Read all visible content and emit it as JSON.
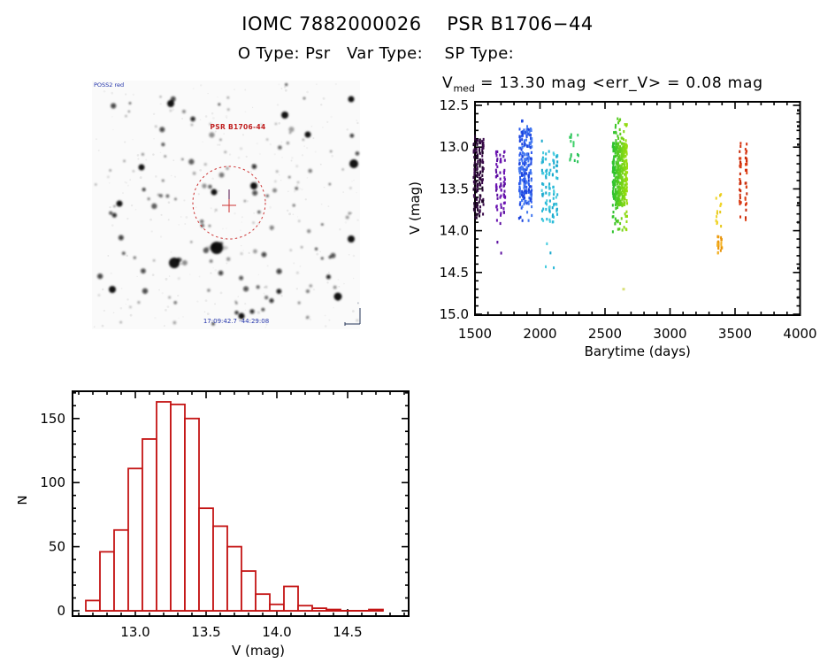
{
  "header": {
    "title": "IOMC 7882000026    PSR B1706−44",
    "subtitle": "O Type: Psr   Var Type:    SP Type:"
  },
  "finding_chart": {
    "survey_label": "POSS2 red",
    "target_label": "PSR B1706-44",
    "coords_label": "17:09:42.7  -44:29:08",
    "circle_color": "#cc3333",
    "label_color": "#c02020",
    "annotation_color": "#2233aa",
    "compass_color": "#223355"
  },
  "lightcurve_title": {
    "prefix": "V",
    "sub": "med",
    "rest": " = 13.30 mag <err_V> = 0.08 mag"
  },
  "chart_data": [
    {
      "type": "scatter",
      "title": "V_med = 13.30 mag <err_V> = 0.08 mag",
      "xlabel": "Barytime (days)",
      "ylabel": "V (mag)",
      "xlim": [
        1500,
        4000
      ],
      "ylim": [
        12.5,
        15.0
      ],
      "y_inverted_magnitude_axis": true,
      "grid": false,
      "x_ticks": [
        1500,
        2000,
        2500,
        3000,
        3500,
        4000
      ],
      "x_minor_step": 100,
      "y_ticks": [
        12.5,
        13.0,
        13.5,
        14.0,
        14.5,
        15.0
      ],
      "y_minor_step": 0.1,
      "clusters": [
        {
          "name": "epoch-1",
          "t_min": 1495,
          "t_max": 1560,
          "cols": 4,
          "n": 150,
          "v_core": [
            12.88,
            13.85
          ],
          "v_full": [
            12.8,
            14.0
          ],
          "tail": 0.12,
          "colors": [
            "#2b0736",
            "#1d0527",
            "#3a0a4a"
          ]
        },
        {
          "name": "epoch-2",
          "t_min": 1668,
          "t_max": 1726,
          "cols": 3,
          "n": 72,
          "v_core": [
            13.05,
            13.8
          ],
          "v_full": [
            12.97,
            14.3
          ],
          "tail": 0.3,
          "colors": [
            "#6b13b2",
            "#5c0fa0"
          ]
        },
        {
          "name": "epoch-3",
          "t_min": 1845,
          "t_max": 1932,
          "cols": 6,
          "n": 240,
          "v_core": [
            12.78,
            13.72
          ],
          "v_full": [
            12.64,
            13.97
          ],
          "tail": 0.12,
          "colors": [
            "#1c43dd",
            "#2b5bee",
            "#4479f0"
          ]
        },
        {
          "name": "epoch-4",
          "t_min": 2020,
          "t_max": 2130,
          "cols": 5,
          "n": 100,
          "v_core": [
            13.05,
            13.9
          ],
          "v_full": [
            12.9,
            14.5
          ],
          "tail": 0.14,
          "colors": [
            "#2ab8d8",
            "#45ccdf",
            "#19a8cc"
          ]
        },
        {
          "name": "epoch-5",
          "t_min": 2235,
          "t_max": 2292,
          "cols": 3,
          "n": 16,
          "v_core": [
            12.82,
            13.3
          ],
          "v_full": [
            12.82,
            13.3
          ],
          "tail": 0,
          "colors": [
            "#2cc45a",
            "#3fd06a"
          ]
        },
        {
          "name": "epoch-6",
          "t_min": 2565,
          "t_max": 2665,
          "cols": 7,
          "n": 400,
          "v_core": [
            12.95,
            13.7
          ],
          "v_full": [
            12.66,
            14.03
          ],
          "tail": 0.3,
          "color_start": "#2ec22e",
          "color_end": "#96dc0e"
        },
        {
          "name": "epoch-7-upper",
          "t_min": 3360,
          "t_max": 3390,
          "cols": 2,
          "n": 14,
          "v_core": [
            13.55,
            13.95
          ],
          "v_full": [
            13.55,
            13.95
          ],
          "tail": 0,
          "colors": [
            "#e6c81a",
            "#f0d428"
          ]
        },
        {
          "name": "epoch-7-lower",
          "t_min": 3368,
          "t_max": 3395,
          "cols": 2,
          "n": 26,
          "v_core": [
            14.05,
            14.28
          ],
          "v_full": [
            14.0,
            14.28
          ],
          "tail": 0.1,
          "colors": [
            "#f09e0e",
            "#e8940a",
            "#f5b324"
          ]
        },
        {
          "name": "epoch-8",
          "t_min": 3540,
          "t_max": 3585,
          "cols": 2,
          "n": 55,
          "v_core": [
            12.95,
            13.7
          ],
          "v_full": [
            12.83,
            13.97
          ],
          "tail": 0.35,
          "colors": [
            "#d5330f",
            "#c72a08",
            "#e04418"
          ]
        }
      ],
      "outliers": [
        {
          "t": 2643,
          "v": 14.7,
          "color": "#d9e07a"
        }
      ],
      "right_edge_marks_v": [
        12.56,
        12.75,
        12.97,
        13.67,
        13.9,
        14.45,
        14.8
      ],
      "median_v_mag": 13.3,
      "err_v_mag": 0.08
    },
    {
      "type": "bar",
      "title": "",
      "xlabel": "V (mag)",
      "ylabel": "N",
      "bin_start": 12.65,
      "bin_width": 0.1,
      "values": [
        8,
        46,
        63,
        111,
        134,
        163,
        161,
        150,
        80,
        66,
        50,
        31,
        13,
        5,
        19,
        4,
        2,
        1,
        0,
        0,
        1
      ],
      "x_ticks": [
        13.0,
        13.5,
        14.0,
        14.5
      ],
      "x_minor_step": 0.1,
      "y_ticks": [
        0,
        50,
        100,
        150
      ],
      "y_minor_step": 10,
      "xlim": [
        12.55,
        14.93
      ],
      "ylim": [
        -4,
        171
      ],
      "bar_color": "#c41414",
      "bar_fill": "#ffffff",
      "grid": false
    }
  ]
}
